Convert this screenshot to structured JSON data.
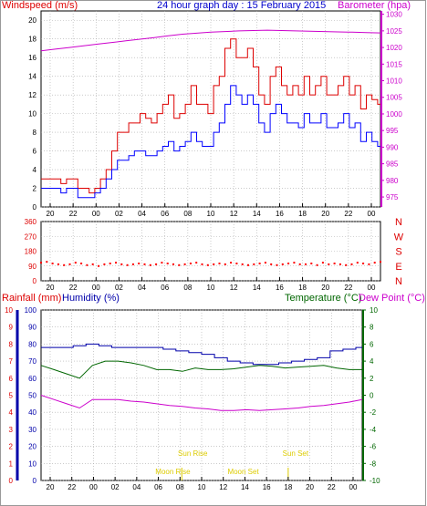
{
  "colors": {
    "wind": "#ff0000",
    "gust": "#dd0000",
    "avg": "#0000ff",
    "baro": "#cc00cc",
    "humidity": "#0000aa",
    "rain": "#dd0000",
    "temperature": "#006600",
    "dewpoint": "#cc00cc",
    "sun": "#ddcc00",
    "grid": "#aaaaaa"
  },
  "chart_data": [
    {
      "type": "line",
      "title": "24 hour graph day : 15 February 2015",
      "ylabel": "Windspeed (m/s)",
      "y2label": "Barometer (hpa)",
      "ylim": [
        0,
        21
      ],
      "y2lim": [
        972,
        1031
      ],
      "yticks": [
        "0",
        "2",
        "4",
        "6",
        "8",
        "10",
        "12",
        "14",
        "16",
        "18",
        "20"
      ],
      "y2ticks": [
        "975",
        "980",
        "985",
        "990",
        "995",
        "1000",
        "1005",
        "1010",
        "1015",
        "1020",
        "1025",
        "1030"
      ],
      "xticks": [
        "20",
        "22",
        "00",
        "02",
        "04",
        "06",
        "08",
        "10",
        "12",
        "14",
        "16",
        "18",
        "20",
        "22",
        "00"
      ],
      "grid": true,
      "series": [
        {
          "name": "",
          "values": [
            3,
            3,
            3,
            3,
            2.5,
            3,
            3,
            2,
            2,
            1.5,
            2,
            3,
            4,
            6,
            8,
            8,
            9,
            9,
            10,
            9.5,
            9,
            10,
            11,
            12,
            9.5,
            10,
            11,
            13,
            11,
            11,
            10,
            13,
            14,
            17,
            18,
            16,
            16,
            17,
            15,
            12,
            11,
            14,
            15,
            13,
            12,
            13,
            12,
            14,
            12,
            13,
            14,
            12,
            12,
            13,
            14,
            12,
            13,
            10.5,
            12,
            11.5,
            11
          ]
        },
        {
          "name": "",
          "values": [
            2,
            2,
            2,
            2,
            1.5,
            2,
            2,
            1,
            1,
            1,
            1.5,
            2,
            3,
            4,
            5,
            5,
            5.5,
            6,
            6,
            5.5,
            5.5,
            6,
            6.5,
            7,
            6,
            6.5,
            7,
            8,
            7,
            6.5,
            6.5,
            8,
            9,
            11,
            13,
            12,
            11,
            12,
            11,
            9,
            8,
            10,
            11,
            10,
            9,
            9,
            8.5,
            10,
            9,
            9,
            10,
            8.5,
            8.5,
            9,
            10,
            8.5,
            9,
            7,
            8,
            7,
            6.5
          ]
        },
        {
          "name": "",
          "values": [
            1019,
            1019.5,
            1020,
            1020.5,
            1021,
            1021.5,
            1022,
            1022.5,
            1023,
            1023.5,
            1024,
            1024.3,
            1024.6,
            1024.8,
            1025,
            1025.1,
            1025.2,
            1025.1,
            1025,
            1024.9,
            1024.8,
            1024.7,
            1024.6,
            1024.5,
            1024.4
          ]
        }
      ]
    },
    {
      "type": "scatter",
      "yticks": [
        "360",
        "270",
        "180",
        "90",
        "0"
      ],
      "ylim": [
        0,
        360
      ],
      "y2ticks": [
        "N",
        "W",
        "S",
        "E",
        "N"
      ],
      "series": [
        {
          "name": "",
          "values": [
            110,
            115,
            105,
            100,
            95,
            100,
            110,
            105,
            95,
            100,
            90,
            100,
            105,
            110,
            100,
            95,
            100,
            105,
            100,
            95,
            100,
            110,
            105,
            100,
            95,
            100,
            105,
            110,
            100,
            95,
            100,
            105,
            100,
            110,
            105,
            100,
            95,
            100,
            105,
            110,
            100,
            95,
            100,
            105,
            110,
            100,
            100,
            105,
            95,
            110,
            100,
            105,
            100,
            95,
            100,
            110,
            105,
            100,
            110,
            115
          ]
        }
      ]
    },
    {
      "type": "line",
      "ylabel": "Rainfall (mm)",
      "ylabel2": "Humidity (%)",
      "y2label": "Temperature (°C)",
      "y2label2": "Dew Point (°C)",
      "ylim": [
        0,
        100
      ],
      "y2lim": [
        -10,
        10
      ],
      "yticks_rain": [
        "0",
        "1",
        "2",
        "3",
        "4",
        "5",
        "6",
        "7",
        "8",
        "9",
        "10"
      ],
      "yticks": [
        "0",
        "10",
        "20",
        "30",
        "40",
        "50",
        "60",
        "70",
        "80",
        "90",
        "100"
      ],
      "y2ticks": [
        "-10",
        "-8",
        "-6",
        "-4",
        "-2",
        "0",
        "2",
        "4",
        "6",
        "8",
        "10"
      ],
      "xticks": [
        "20",
        "22",
        "00",
        "02",
        "04",
        "06",
        "08",
        "10",
        "12",
        "14",
        "16",
        "18",
        "20",
        "22",
        "00"
      ],
      "annotations": [
        "Moon Rise",
        "Sun Rise",
        "Moon Set",
        "Sun Set"
      ],
      "series": [
        {
          "name": "Humidity (%)",
          "values": [
            78,
            78,
            78,
            79,
            80,
            79,
            78,
            78,
            78,
            78,
            77,
            76,
            75,
            74,
            72,
            70,
            69,
            68,
            68,
            69,
            70,
            71,
            72,
            76,
            77,
            78
          ]
        },
        {
          "name": "Temperature (°C)",
          "values": [
            3.5,
            3,
            2.5,
            2,
            3.5,
            4,
            4,
            3.8,
            3.5,
            3,
            3,
            2.8,
            3.2,
            3,
            3,
            3.1,
            3.3,
            3.5,
            3.4,
            3.2,
            3.3,
            3.4,
            3.5,
            3.2,
            3.0,
            3.0
          ]
        },
        {
          "name": "Dew Point (°C)",
          "values": [
            0,
            -0.5,
            -1,
            -1.5,
            -0.5,
            -0.5,
            -0.5,
            -0.7,
            -0.8,
            -1,
            -1.2,
            -1.3,
            -1.5,
            -1.6,
            -1.8,
            -1.8,
            -1.7,
            -1.8,
            -1.7,
            -1.6,
            -1.5,
            -1.3,
            -1.2,
            -1,
            -0.8,
            -0.5
          ]
        }
      ]
    }
  ]
}
